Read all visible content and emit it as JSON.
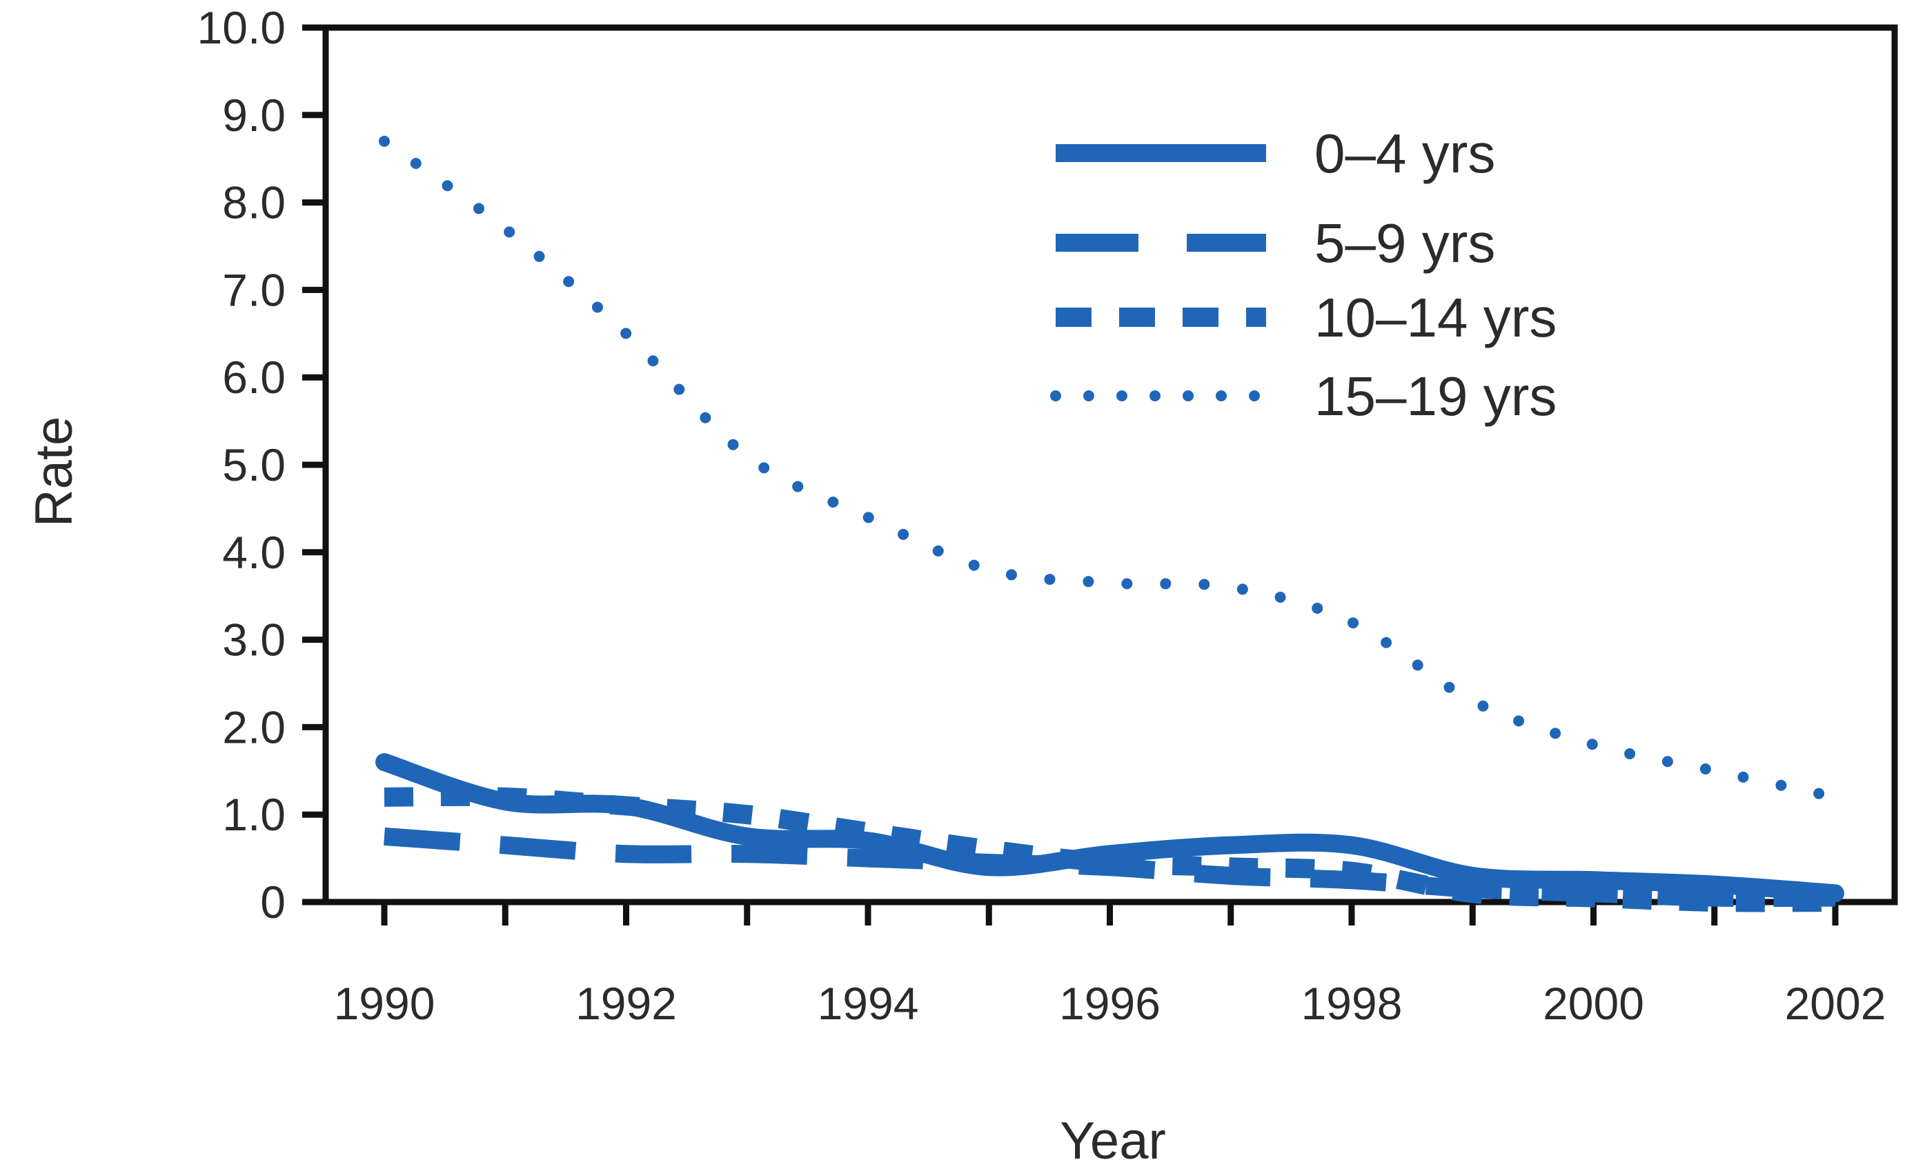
{
  "chart_data": {
    "type": "line",
    "xlabel": "Year",
    "ylabel": "Rate",
    "xlim": [
      1990,
      2002
    ],
    "ylim": [
      0,
      10
    ],
    "x_ticks": [
      "1990",
      "1992",
      "1994",
      "1996",
      "1998",
      "2000",
      "2002"
    ],
    "y_ticks": [
      "0",
      "1.0",
      "2.0",
      "3.0",
      "4.0",
      "5.0",
      "6.0",
      "7.0",
      "8.0",
      "9.0",
      "10.0"
    ],
    "grid": false,
    "legend_position": "top-right",
    "line_color": "#1f66b8",
    "frame_color": "#111111",
    "x": [
      1990,
      1991,
      1992,
      1993,
      1994,
      1995,
      1996,
      1997,
      1998,
      1999,
      2000,
      2001,
      2002
    ],
    "series": [
      {
        "name": "0–4 yrs",
        "dash": "solid",
        "values": [
          1.6,
          1.15,
          1.1,
          0.75,
          0.7,
          0.4,
          0.55,
          0.65,
          0.65,
          0.3,
          0.25,
          0.2,
          0.1
        ]
      },
      {
        "name": "5–9 yrs",
        "dash": "long-dash",
        "values": [
          0.75,
          0.65,
          0.55,
          0.55,
          0.5,
          0.45,
          0.4,
          0.3,
          0.25,
          0.15,
          0.1,
          0.05,
          0.05
        ]
      },
      {
        "name": "10–14 yrs",
        "dash": "short-dash",
        "values": [
          1.2,
          1.2,
          1.1,
          1.0,
          0.8,
          0.6,
          0.45,
          0.4,
          0.35,
          0.1,
          0.05,
          0.0,
          0.0
        ]
      },
      {
        "name": "15–19 yrs",
        "dash": "dotted",
        "values": [
          8.7,
          7.7,
          6.5,
          5.1,
          4.4,
          3.8,
          3.65,
          3.6,
          3.2,
          2.3,
          1.8,
          1.5,
          1.2
        ]
      }
    ]
  }
}
